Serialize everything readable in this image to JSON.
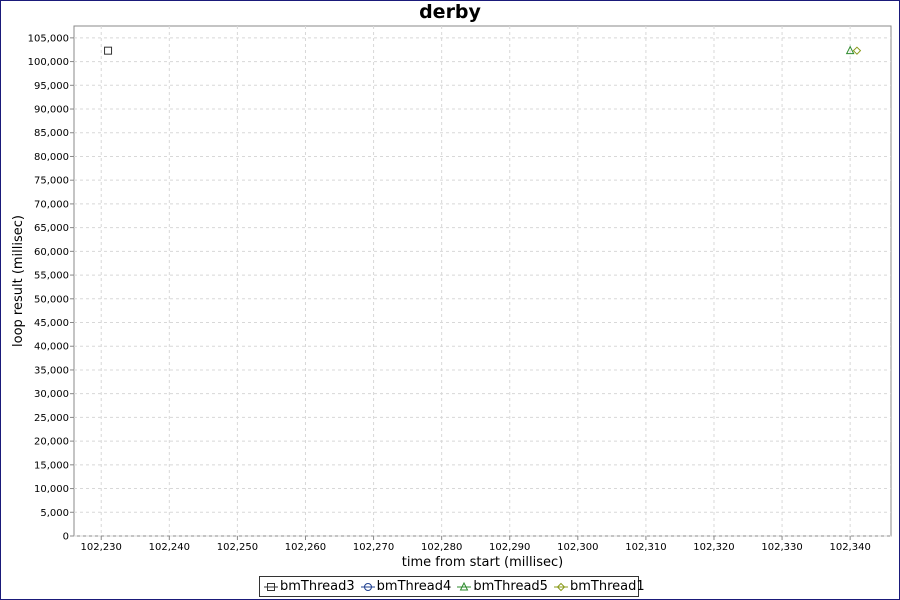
{
  "chart_data": {
    "type": "scatter",
    "title": "derby",
    "xlabel": "time from start (millisec)",
    "ylabel": "loop result (millisec)",
    "xlim": [
      102226,
      102346
    ],
    "ylim": [
      0,
      107500
    ],
    "x_ticks": [
      102230,
      102240,
      102250,
      102260,
      102270,
      102280,
      102290,
      102300,
      102310,
      102320,
      102330,
      102340
    ],
    "x_tick_labels": [
      "102,230",
      "102,240",
      "102,250",
      "102,260",
      "102,270",
      "102,280",
      "102,290",
      "102,300",
      "102,310",
      "102,320",
      "102,330",
      "102,340"
    ],
    "y_ticks": [
      0,
      5000,
      10000,
      15000,
      20000,
      25000,
      30000,
      35000,
      40000,
      45000,
      50000,
      55000,
      60000,
      65000,
      70000,
      75000,
      80000,
      85000,
      90000,
      95000,
      100000,
      105000
    ],
    "y_tick_labels": [
      "0",
      "5,000",
      "10,000",
      "15,000",
      "20,000",
      "25,000",
      "30,000",
      "35,000",
      "40,000",
      "45,000",
      "50,000",
      "55,000",
      "60,000",
      "65,000",
      "70,000",
      "75,000",
      "80,000",
      "85,000",
      "90,000",
      "95,000",
      "100,000",
      "105,000"
    ],
    "grid": true,
    "legend_position": "bottom",
    "series": [
      {
        "name": "bmThread3",
        "marker": "square",
        "color": "#333333",
        "points": [
          {
            "x": 102231,
            "y": 102300
          }
        ]
      },
      {
        "name": "bmThread4",
        "marker": "circle",
        "color": "#1f3f8f",
        "points": []
      },
      {
        "name": "bmThread5",
        "marker": "triangle",
        "color": "#2e8b2e",
        "points": [
          {
            "x": 102340,
            "y": 102300
          }
        ]
      },
      {
        "name": "bmThread1",
        "marker": "diamond",
        "color": "#8a9a1a",
        "points": [
          {
            "x": 102341,
            "y": 102300
          }
        ]
      }
    ]
  }
}
